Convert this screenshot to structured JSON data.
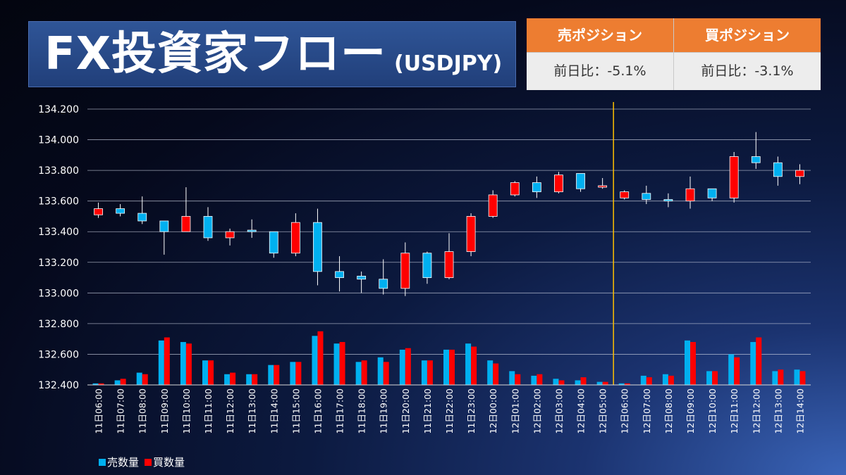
{
  "header": {
    "title": "FX投資家フロー",
    "pair": "(USDJPY)"
  },
  "positions": {
    "sell": {
      "label": "売ポジション",
      "value": "前日比：-5.1%"
    },
    "buy": {
      "label": "買ポジション",
      "value": "前日比：-3.1%"
    }
  },
  "legend": {
    "sell_label": "売数量",
    "buy_label": "買数量"
  },
  "colors": {
    "sell": "#00b0f0",
    "buy": "#ff0000",
    "title_bg": "#2f5597",
    "header_orange": "#ed7d31",
    "divider": "#ffc000"
  },
  "chart_data": {
    "type": "candlestick",
    "ylim": [
      132.4,
      134.2
    ],
    "yticks": [
      "134.200",
      "134.000",
      "133.800",
      "133.600",
      "133.400",
      "133.200",
      "133.000",
      "132.800",
      "132.600",
      "132.400"
    ],
    "divider_after": "12日05:00",
    "categories": [
      "11日06:00",
      "11日07:00",
      "11日08:00",
      "11日09:00",
      "11日10:00",
      "11日11:00",
      "11日12:00",
      "11日13:00",
      "11日14:00",
      "11日15:00",
      "11日16:00",
      "11日17:00",
      "11日18:00",
      "11日19:00",
      "11日20:00",
      "11日21:00",
      "11日22:00",
      "11日23:00",
      "12日00:00",
      "12日01:00",
      "12日02:00",
      "12日03:00",
      "12日04:00",
      "12日05:00",
      "12日06:00",
      "12日07:00",
      "12日08:00",
      "12日09:00",
      "12日10:00",
      "12日11:00",
      "12日12:00",
      "12日13:00",
      "12日14:00"
    ],
    "candles": [
      {
        "open": 133.55,
        "high": 133.59,
        "low": 133.49,
        "close": 133.51,
        "color": "red"
      },
      {
        "open": 133.55,
        "high": 133.58,
        "low": 133.5,
        "close": 133.52,
        "color": "blue"
      },
      {
        "open": 133.52,
        "high": 133.63,
        "low": 133.45,
        "close": 133.47,
        "color": "blue"
      },
      {
        "open": 133.47,
        "high": 133.47,
        "low": 133.25,
        "close": 133.4,
        "color": "blue"
      },
      {
        "open": 133.4,
        "high": 133.69,
        "low": 133.4,
        "close": 133.5,
        "color": "red"
      },
      {
        "open": 133.5,
        "high": 133.56,
        "low": 133.34,
        "close": 133.36,
        "color": "blue"
      },
      {
        "open": 133.4,
        "high": 133.42,
        "low": 133.31,
        "close": 133.36,
        "color": "red"
      },
      {
        "open": 133.41,
        "high": 133.48,
        "low": 133.36,
        "close": 133.4,
        "color": "blue"
      },
      {
        "open": 133.4,
        "high": 133.4,
        "low": 133.23,
        "close": 133.26,
        "color": "blue"
      },
      {
        "open": 133.26,
        "high": 133.52,
        "low": 133.24,
        "close": 133.46,
        "color": "red"
      },
      {
        "open": 133.46,
        "high": 133.55,
        "low": 133.05,
        "close": 133.14,
        "color": "blue"
      },
      {
        "open": 133.14,
        "high": 133.24,
        "low": 133.01,
        "close": 133.1,
        "color": "blue"
      },
      {
        "open": 133.11,
        "high": 133.14,
        "low": 133.0,
        "close": 133.09,
        "color": "blue"
      },
      {
        "open": 133.09,
        "high": 133.22,
        "low": 132.99,
        "close": 133.03,
        "color": "blue"
      },
      {
        "open": 133.03,
        "high": 133.33,
        "low": 132.98,
        "close": 133.26,
        "color": "red"
      },
      {
        "open": 133.1,
        "high": 133.27,
        "low": 133.06,
        "close": 133.26,
        "color": "blue"
      },
      {
        "open": 133.1,
        "high": 133.39,
        "low": 133.09,
        "close": 133.27,
        "color": "red"
      },
      {
        "open": 133.27,
        "high": 133.52,
        "low": 133.24,
        "close": 133.5,
        "color": "red"
      },
      {
        "open": 133.5,
        "high": 133.67,
        "low": 133.49,
        "close": 133.64,
        "color": "red"
      },
      {
        "open": 133.64,
        "high": 133.73,
        "low": 133.63,
        "close": 133.72,
        "color": "red"
      },
      {
        "open": 133.72,
        "high": 133.76,
        "low": 133.62,
        "close": 133.66,
        "color": "blue"
      },
      {
        "open": 133.66,
        "high": 133.79,
        "low": 133.65,
        "close": 133.77,
        "color": "red"
      },
      {
        "open": 133.78,
        "high": 133.78,
        "low": 133.66,
        "close": 133.68,
        "color": "blue"
      },
      {
        "open": 133.69,
        "high": 133.75,
        "low": 133.68,
        "close": 133.7,
        "color": "red"
      },
      {
        "open": 133.62,
        "high": 133.67,
        "low": 133.61,
        "close": 133.66,
        "color": "red"
      },
      {
        "open": 133.65,
        "high": 133.7,
        "low": 133.58,
        "close": 133.61,
        "color": "blue"
      },
      {
        "open": 133.61,
        "high": 133.65,
        "low": 133.56,
        "close": 133.6,
        "color": "blue"
      },
      {
        "open": 133.6,
        "high": 133.76,
        "low": 133.55,
        "close": 133.68,
        "color": "red"
      },
      {
        "open": 133.68,
        "high": 133.68,
        "low": 133.6,
        "close": 133.62,
        "color": "blue"
      },
      {
        "open": 133.62,
        "high": 133.92,
        "low": 133.59,
        "close": 133.89,
        "color": "red"
      },
      {
        "open": 133.89,
        "high": 134.05,
        "low": 133.81,
        "close": 133.85,
        "color": "blue"
      },
      {
        "open": 133.85,
        "high": 133.89,
        "low": 133.7,
        "close": 133.76,
        "color": "blue"
      },
      {
        "open": 133.76,
        "high": 133.84,
        "low": 133.71,
        "close": 133.8,
        "color": "red"
      }
    ],
    "volume": {
      "series": [
        {
          "name": "売数量",
          "values": [
            132.41,
            132.43,
            132.48,
            132.69,
            132.68,
            132.56,
            132.47,
            132.47,
            132.53,
            132.55,
            132.72,
            132.67,
            132.55,
            132.58,
            132.63,
            132.56,
            132.63,
            132.67,
            132.56,
            132.49,
            132.46,
            132.44,
            132.43,
            132.42,
            132.41,
            132.46,
            132.47,
            132.69,
            132.49,
            132.6,
            132.68,
            132.49,
            132.5
          ]
        },
        {
          "name": "買数量",
          "values": [
            132.41,
            132.44,
            132.47,
            132.71,
            132.67,
            132.56,
            132.48,
            132.47,
            132.53,
            132.55,
            132.75,
            132.68,
            132.56,
            132.55,
            132.64,
            132.56,
            132.63,
            132.65,
            132.54,
            132.47,
            132.47,
            132.43,
            132.45,
            132.42,
            132.41,
            132.45,
            132.46,
            132.68,
            132.49,
            132.58,
            132.71,
            132.5,
            132.49
          ]
        }
      ]
    }
  }
}
